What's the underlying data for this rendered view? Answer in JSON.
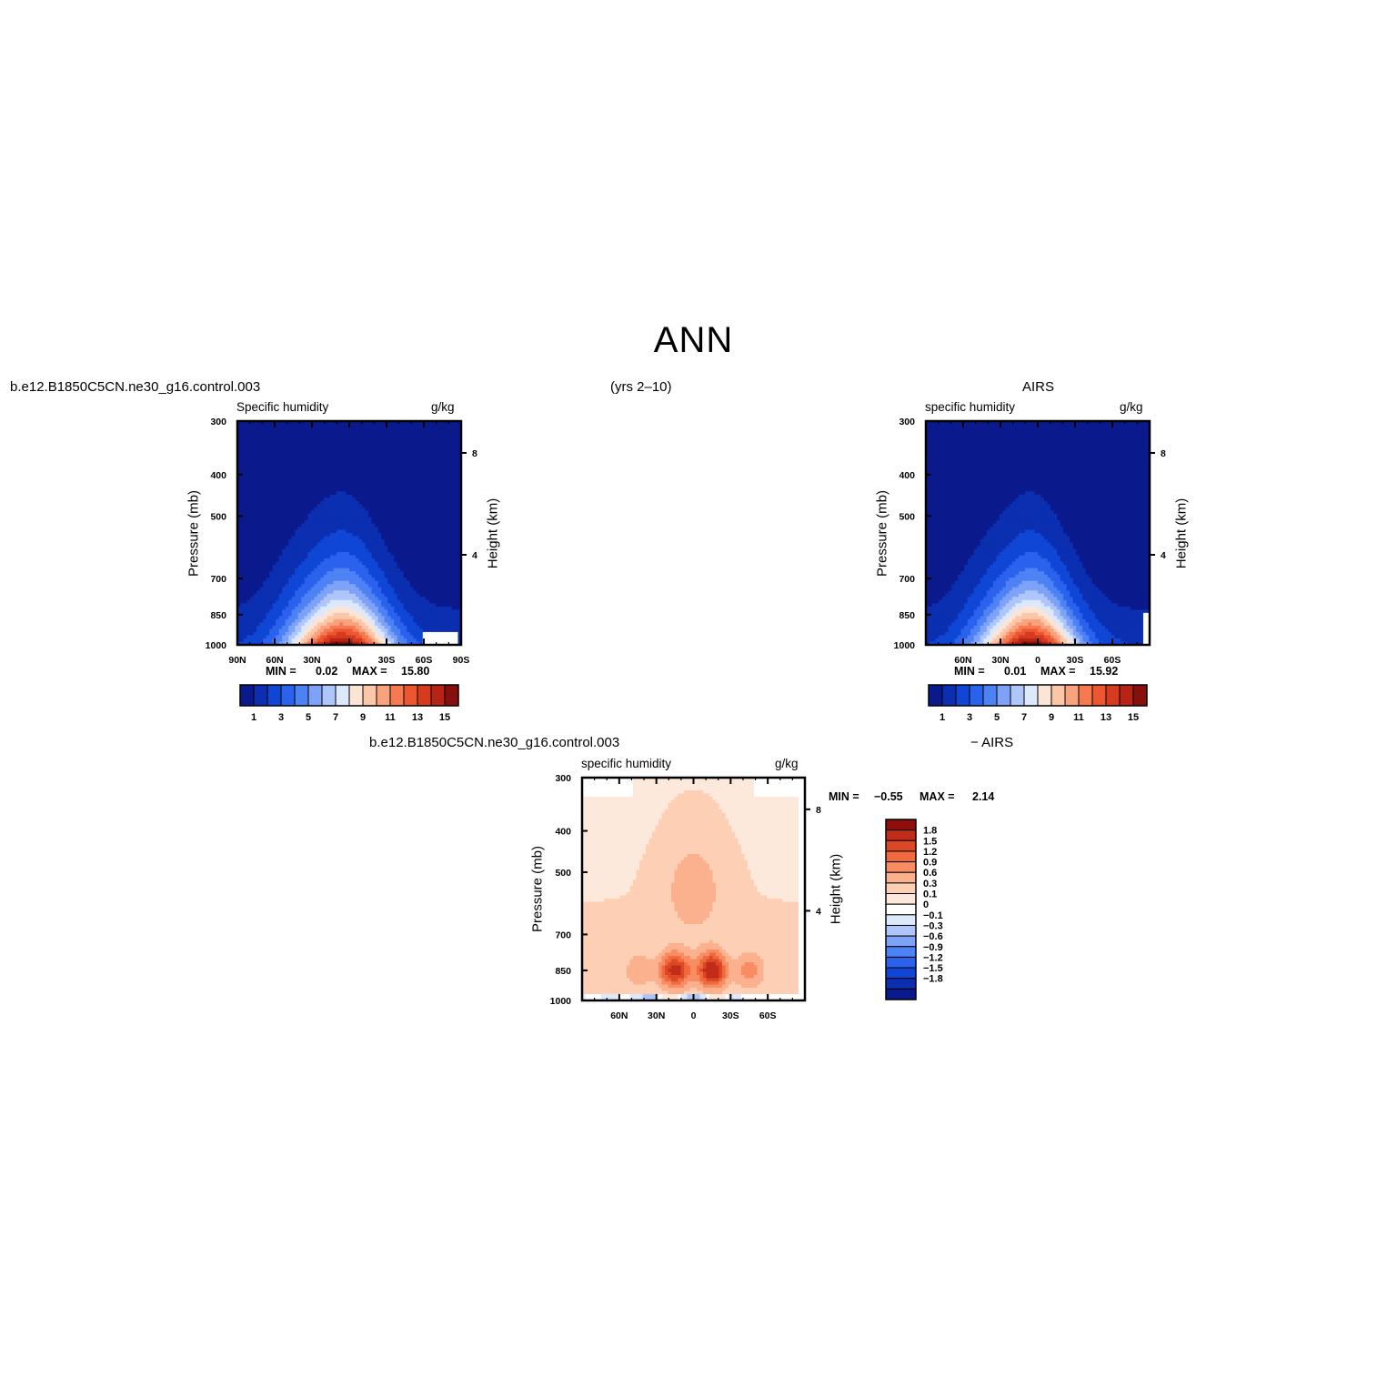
{
  "title": "ANN",
  "years": "(yrs 2–10)",
  "colors": {
    "levels_abs": [
      "#0a1a8c",
      "#0b2fb0",
      "#0f46d6",
      "#2a62ee",
      "#4d82f5",
      "#7ea2f7",
      "#aec6fa",
      "#dce9fd",
      "#fde5d6",
      "#fcc6a9",
      "#f9a27e",
      "#f57a52",
      "#ec5630",
      "#d63a1f",
      "#b52414",
      "#87100c"
    ],
    "levels_diff": [
      "#0a1a8c",
      "#0b2fb0",
      "#0f46d6",
      "#2a62ee",
      "#4d82f5",
      "#7ea2f7",
      "#aec6fa",
      "#dce9fd",
      "#ffffff",
      "#fde9db",
      "#fdd0b5",
      "#fbb08e",
      "#f88c62",
      "#f06a3e",
      "#dc4825",
      "#c02c18",
      "#8e0e0c"
    ]
  },
  "panels": {
    "model": {
      "case_label": "b.e12.B1850C5CN.ne30_g16.control.003",
      "left_title": "Specific humidity",
      "units": "g/kg",
      "ylabel": "Pressure (mb)",
      "y2label": "Height (km)",
      "min_label": "MIN =",
      "min": "0.02",
      "max_label": "MAX =",
      "max": "15.80",
      "xticks": [
        "90N",
        "60N",
        "30N",
        "0",
        "30S",
        "60S",
        "90S"
      ],
      "yticks": [
        "300",
        "400",
        "500",
        "700",
        "850",
        "1000"
      ],
      "y2ticks": [
        "8",
        "4"
      ],
      "colorbar_labels": [
        "1",
        "3",
        "5",
        "7",
        "9",
        "11",
        "13",
        "15"
      ]
    },
    "obs": {
      "case_label": "AIRS",
      "left_title": "specific humidity",
      "units": "g/kg",
      "ylabel": "Pressure (mb)",
      "y2label": "Height (km)",
      "min_label": "MIN =",
      "min": "0.01",
      "max_label": "MAX =",
      "max": "15.92",
      "xticks": [
        "60N",
        "30N",
        "0",
        "30S",
        "60S"
      ],
      "yticks": [
        "300",
        "400",
        "500",
        "700",
        "850",
        "1000"
      ],
      "y2ticks": [
        "8",
        "4"
      ],
      "colorbar_labels": [
        "1",
        "3",
        "5",
        "7",
        "9",
        "11",
        "13",
        "15"
      ]
    },
    "diff": {
      "case_label": "b.e12.B1850C5CN.ne30_g16.control.003",
      "case_label_right": "− AIRS",
      "left_title": "specific humidity",
      "units": "g/kg",
      "ylabel": "Pressure (mb)",
      "y2label": "Height (km)",
      "min_label": "MIN =",
      "min": "−0.55",
      "max_label": "MAX =",
      "max": "2.14",
      "xticks": [
        "60N",
        "30N",
        "0",
        "30S",
        "60S"
      ],
      "yticks": [
        "300",
        "400",
        "500",
        "700",
        "850",
        "1000"
      ],
      "y2ticks": [
        "8",
        "4"
      ],
      "colorbar_labels": [
        "1.8",
        "1.5",
        "1.2",
        "0.9",
        "0.6",
        "0.3",
        "0.1",
        "0",
        "−0.1",
        "−0.3",
        "−0.6",
        "−0.9",
        "−1.2",
        "−1.5",
        "−1.8"
      ]
    }
  },
  "chart_data": [
    {
      "type": "heatmap",
      "left_title": "Specific humidity",
      "units": "g/kg",
      "x_axis": {
        "ticks": [
          "90N",
          "60N",
          "30N",
          "0",
          "30S",
          "60S",
          "90S"
        ],
        "range": [
          90,
          -90
        ]
      },
      "y_axis": {
        "label": "Pressure (mb)",
        "ticks": [
          300,
          400,
          500,
          700,
          850,
          1000
        ],
        "range": [
          1000,
          300
        ],
        "scale": "log"
      },
      "y2_axis": {
        "label": "Height (km)",
        "ticks": [
          8,
          4
        ]
      },
      "contour_levels": [
        1,
        2,
        3,
        4,
        5,
        6,
        7,
        8,
        9,
        10,
        11,
        12,
        13,
        14,
        15
      ],
      "field_peak": {
        "lat": 5,
        "pressure_mb": 1000,
        "value": 15.8
      },
      "min": 0.02,
      "max": 15.8
    },
    {
      "type": "heatmap",
      "left_title": "specific humidity",
      "units": "g/kg",
      "x_axis": {
        "ticks": [
          "60N",
          "30N",
          "0",
          "30S",
          "60S"
        ],
        "range": [
          90,
          -90
        ]
      },
      "y_axis": {
        "label": "Pressure (mb)",
        "ticks": [
          300,
          400,
          500,
          700,
          850,
          1000
        ],
        "range": [
          1000,
          300
        ],
        "scale": "log"
      },
      "y2_axis": {
        "label": "Height (km)",
        "ticks": [
          8,
          4
        ]
      },
      "contour_levels": [
        1,
        2,
        3,
        4,
        5,
        6,
        7,
        8,
        9,
        10,
        11,
        12,
        13,
        14,
        15
      ],
      "field_peak": {
        "lat": 5,
        "pressure_mb": 1000,
        "value": 15.92
      },
      "min": 0.01,
      "max": 15.92
    },
    {
      "type": "heatmap",
      "left_title": "specific humidity",
      "units": "g/kg",
      "x_axis": {
        "ticks": [
          "60N",
          "30N",
          "0",
          "30S",
          "60S"
        ],
        "range": [
          90,
          -90
        ]
      },
      "y_axis": {
        "label": "Pressure (mb)",
        "ticks": [
          300,
          400,
          500,
          700,
          850,
          1000
        ],
        "range": [
          1000,
          300
        ],
        "scale": "log"
      },
      "y2_axis": {
        "label": "Height (km)",
        "ticks": [
          8,
          4
        ]
      },
      "contour_levels": [
        -1.8,
        -1.5,
        -1.2,
        -0.9,
        -0.6,
        -0.3,
        -0.1,
        0,
        0.1,
        0.3,
        0.6,
        0.9,
        1.2,
        1.5,
        1.8
      ],
      "field_peaks": [
        {
          "lat": -15,
          "pressure_mb": 850,
          "value": 2.14
        },
        {
          "lat": 15,
          "pressure_mb": 850,
          "value": 1.8
        }
      ],
      "min": -0.55,
      "max": 2.14
    }
  ]
}
